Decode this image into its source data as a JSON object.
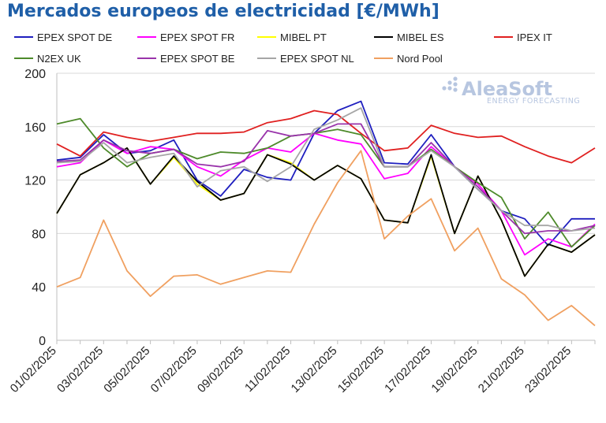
{
  "title": "Mercados europeos de electricidad [€/MWh]",
  "logo": {
    "name": "AleaSoft",
    "tagline": "ENERGY FORECASTING"
  },
  "chart_data": {
    "type": "line",
    "legend_position": "top",
    "grid": "horizontal",
    "ylim": [
      0,
      200
    ],
    "yticks": [
      0,
      40,
      80,
      120,
      160,
      200
    ],
    "x": [
      "01/02/2025",
      "02/02/2025",
      "03/02/2025",
      "04/02/2025",
      "05/02/2025",
      "06/02/2025",
      "07/02/2025",
      "08/02/2025",
      "09/02/2025",
      "10/02/2025",
      "11/02/2025",
      "12/02/2025",
      "13/02/2025",
      "14/02/2025",
      "15/02/2025",
      "16/02/2025",
      "17/02/2025",
      "18/02/2025",
      "19/02/2025",
      "20/02/2025",
      "21/02/2025",
      "22/02/2025",
      "23/02/2025",
      "24/02/2025"
    ],
    "xtick_labels": [
      "01/02/2025",
      "03/02/2025",
      "05/02/2025",
      "07/02/2025",
      "09/02/2025",
      "11/02/2025",
      "13/02/2025",
      "15/02/2025",
      "17/02/2025",
      "19/02/2025",
      "21/02/2025",
      "23/02/2025"
    ],
    "series": [
      {
        "name": "EPEX SPOT DE",
        "color": "#1f1fbf",
        "values": [
          135,
          137,
          154,
          140,
          142,
          150,
          120,
          108,
          128,
          122,
          120,
          155,
          172,
          179,
          133,
          132,
          154,
          130,
          113,
          97,
          91,
          71,
          91,
          91
        ]
      },
      {
        "name": "EPEX SPOT FR",
        "color": "#ff00ff",
        "values": [
          130,
          133,
          150,
          140,
          145,
          143,
          130,
          123,
          135,
          144,
          141,
          155,
          150,
          147,
          121,
          125,
          145,
          130,
          117,
          97,
          64,
          76,
          70,
          87
        ]
      },
      {
        "name": "MIBEL PT",
        "color": "#ffff00",
        "values": [
          95,
          124,
          133,
          144,
          117,
          137,
          117,
          105,
          110,
          139,
          133,
          120,
          131,
          121,
          90,
          88,
          138,
          80,
          123,
          90,
          48,
          72,
          66,
          79
        ]
      },
      {
        "name": "MIBEL ES",
        "color": "#000000",
        "values": [
          95,
          124,
          133,
          144,
          117,
          138,
          119,
          105,
          110,
          139,
          132,
          120,
          131,
          121,
          90,
          88,
          139,
          80,
          123,
          90,
          48,
          72,
          66,
          79
        ]
      },
      {
        "name": "IPEX IT",
        "color": "#e02020",
        "values": [
          147,
          138,
          156,
          152,
          149,
          152,
          155,
          155,
          156,
          163,
          166,
          172,
          169,
          155,
          142,
          144,
          161,
          155,
          152,
          153,
          145,
          138,
          133,
          144
        ]
      },
      {
        "name": "N2EX UK",
        "color": "#4d8a2a",
        "values": [
          162,
          166,
          144,
          130,
          140,
          143,
          136,
          141,
          140,
          144,
          153,
          155,
          158,
          154,
          130,
          130,
          143,
          130,
          118,
          107,
          76,
          96,
          70,
          86
        ]
      },
      {
        "name": "EPEX SPOT BE",
        "color": "#9933aa",
        "values": [
          134,
          135,
          150,
          142,
          140,
          143,
          132,
          130,
          134,
          157,
          153,
          155,
          162,
          162,
          130,
          130,
          148,
          130,
          115,
          97,
          80,
          82,
          82,
          86
        ]
      },
      {
        "name": "EPEX SPOT NL",
        "color": "#a6a6a6",
        "values": [
          133,
          134,
          148,
          133,
          137,
          140,
          115,
          127,
          130,
          119,
          130,
          158,
          165,
          174,
          130,
          130,
          142,
          130,
          113,
          97,
          86,
          86,
          82,
          84
        ]
      },
      {
        "name": "Nord Pool",
        "color": "#f0a060",
        "values": [
          40,
          47,
          90,
          52,
          33,
          48,
          49,
          42,
          47,
          52,
          51,
          87,
          118,
          142,
          76,
          93,
          106,
          67,
          84,
          46,
          34,
          15,
          26,
          11
        ]
      }
    ]
  }
}
